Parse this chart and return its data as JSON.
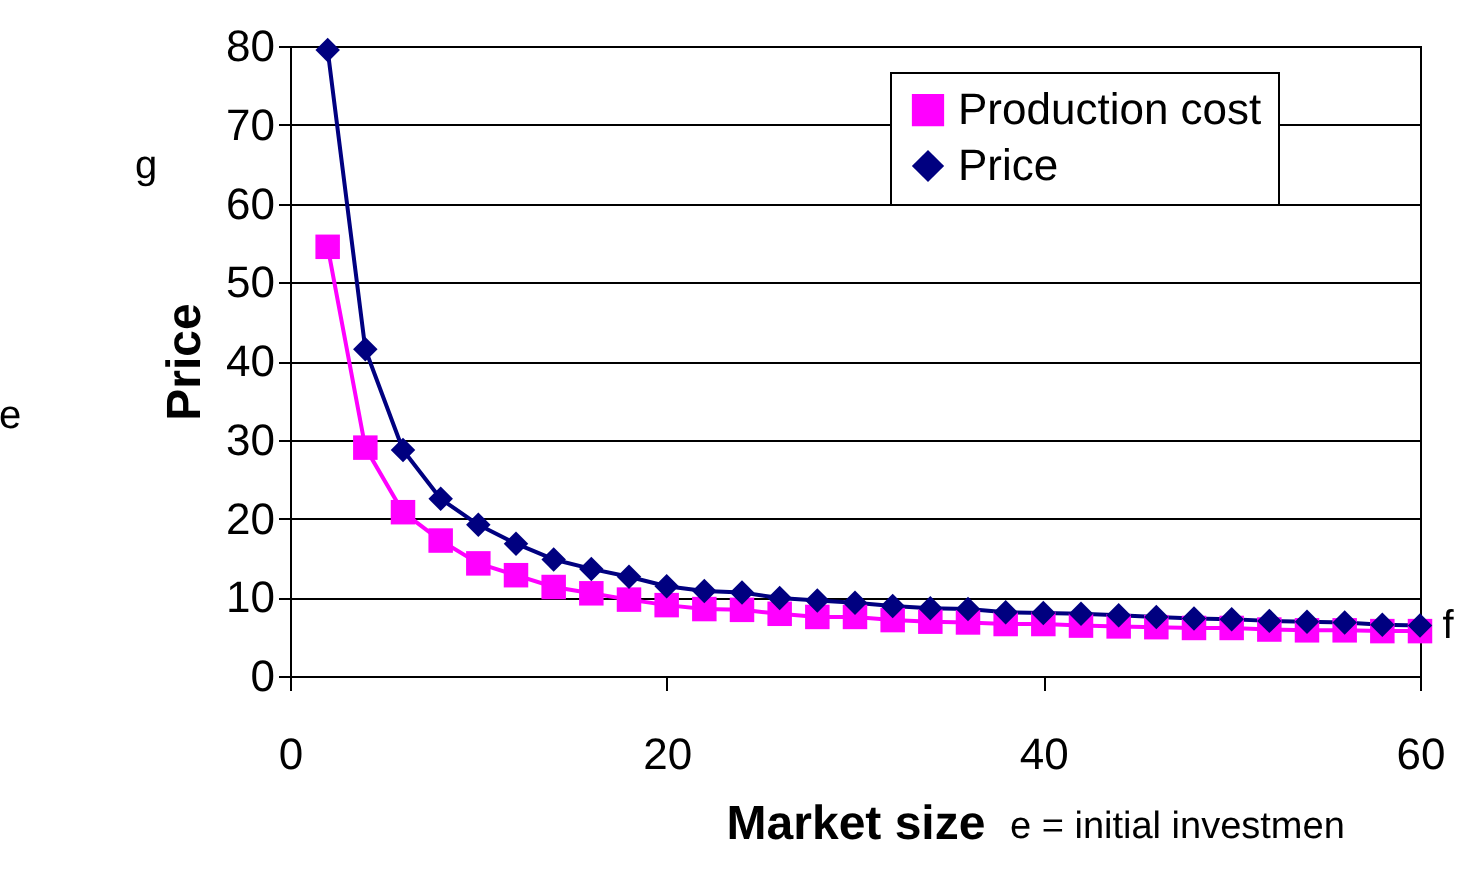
{
  "chart_data": {
    "type": "line",
    "xlabel": "Market size",
    "ylabel": "Price",
    "x": [
      2,
      4,
      6,
      8,
      10,
      12,
      14,
      16,
      18,
      20,
      22,
      24,
      26,
      28,
      30,
      32,
      34,
      36,
      38,
      40,
      42,
      44,
      46,
      48,
      50,
      52,
      54,
      56,
      58,
      60
    ],
    "series": [
      {
        "name": "Production cost",
        "color": "#ff00ff",
        "marker": "square",
        "values": [
          54.5,
          29.0,
          20.8,
          17.2,
          14.3,
          12.8,
          11.3,
          10.5,
          9.7,
          9.0,
          8.5,
          8.4,
          7.9,
          7.5,
          7.5,
          7.1,
          6.9,
          6.8,
          6.6,
          6.6,
          6.4,
          6.3,
          6.2,
          6.1,
          6.1,
          5.9,
          5.8,
          5.8,
          5.7,
          5.7
        ]
      },
      {
        "name": "Price",
        "color": "#000080",
        "marker": "diamond",
        "values": [
          79.5,
          41.5,
          28.7,
          22.5,
          19.2,
          16.8,
          14.8,
          13.6,
          12.6,
          11.4,
          10.8,
          10.6,
          9.9,
          9.6,
          9.3,
          8.9,
          8.6,
          8.5,
          8.1,
          8.0,
          7.9,
          7.7,
          7.5,
          7.3,
          7.2,
          7.0,
          6.9,
          6.8,
          6.5,
          6.4
        ]
      }
    ],
    "xlim": [
      0,
      60
    ],
    "xticks": [
      0,
      20,
      40,
      60
    ],
    "ylim": [
      0,
      80
    ],
    "yticks": [
      0,
      10,
      20,
      30,
      40,
      50,
      60,
      70,
      80
    ],
    "grid": "y",
    "legend": "top right",
    "line_style": "solid",
    "annotations": [
      "g",
      "e",
      "f",
      "e = initial investmen"
    ]
  }
}
